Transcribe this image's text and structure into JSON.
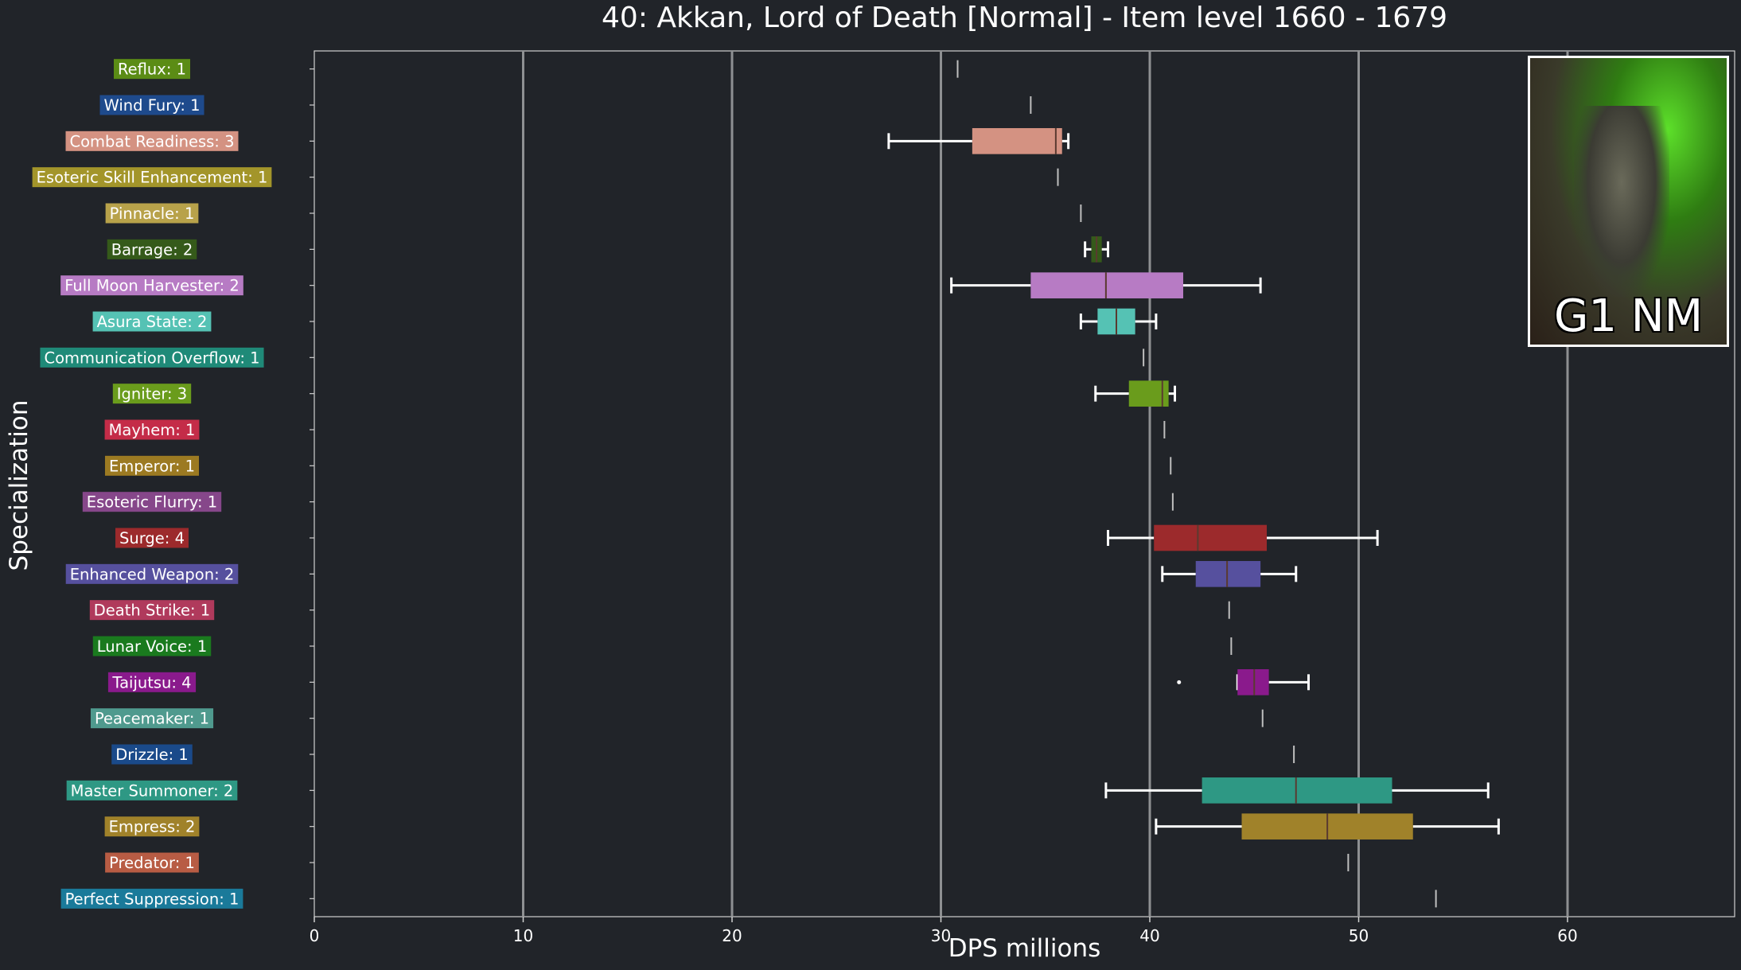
{
  "chart_data": {
    "type": "box",
    "orientation": "horizontal",
    "title": "40: Akkan, Lord of Death [Normal] - Item level 1660 - 1679",
    "xlabel": "DPS millions",
    "ylabel": "Specialization",
    "xlim": [
      0,
      68
    ],
    "xticks": [
      0,
      10,
      20,
      30,
      40,
      50,
      60
    ],
    "grid": "vertical",
    "inset_label": "G1 NM",
    "series": [
      {
        "label": "Reflux: 1",
        "color": "#5b8c15",
        "min": 30.8,
        "q1": 30.8,
        "median": 30.8,
        "q3": 30.8,
        "max": 30.8
      },
      {
        "label": "Wind Fury: 1",
        "color": "#1e4a8c",
        "min": 34.3,
        "q1": 34.3,
        "median": 34.3,
        "q3": 34.3,
        "max": 34.3
      },
      {
        "label": "Combat Readiness: 3",
        "color": "#d49282",
        "min": 27.5,
        "q1": 31.5,
        "median": 35.5,
        "q3": 35.8,
        "max": 36.1
      },
      {
        "label": "Esoteric Skill Enhancement: 1",
        "color": "#a3952a",
        "min": 35.6,
        "q1": 35.6,
        "median": 35.6,
        "q3": 35.6,
        "max": 35.6
      },
      {
        "label": "Pinnacle: 1",
        "color": "#b8a24a",
        "min": 36.7,
        "q1": 36.7,
        "median": 36.7,
        "q3": 36.7,
        "max": 36.7
      },
      {
        "label": "Barrage: 2",
        "color": "#355a1a",
        "min": 36.9,
        "q1": 37.2,
        "median": 37.45,
        "q3": 37.7,
        "max": 38.0
      },
      {
        "label": "Full Moon Harvester: 2",
        "color": "#b77bc4",
        "min": 30.5,
        "q1": 34.3,
        "median": 37.9,
        "q3": 41.6,
        "max": 45.3
      },
      {
        "label": "Asura State: 2",
        "color": "#55c2b4",
        "min": 36.7,
        "q1": 37.5,
        "median": 38.4,
        "q3": 39.3,
        "max": 40.3
      },
      {
        "label": "Communication Overflow: 1",
        "color": "#1f8a78",
        "min": 39.7,
        "q1": 39.7,
        "median": 39.7,
        "q3": 39.7,
        "max": 39.7
      },
      {
        "label": "Igniter: 3",
        "color": "#6a9c1c",
        "min": 37.4,
        "q1": 39.0,
        "median": 40.6,
        "q3": 40.9,
        "max": 41.2
      },
      {
        "label": "Mayhem: 1",
        "color": "#c42c48",
        "min": 40.7,
        "q1": 40.7,
        "median": 40.7,
        "q3": 40.7,
        "max": 40.7
      },
      {
        "label": "Emperor: 1",
        "color": "#9c7a22",
        "min": 41.0,
        "q1": 41.0,
        "median": 41.0,
        "q3": 41.0,
        "max": 41.0
      },
      {
        "label": "Esoteric Flurry: 1",
        "color": "#86478a",
        "min": 41.1,
        "q1": 41.1,
        "median": 41.1,
        "q3": 41.1,
        "max": 41.1
      },
      {
        "label": "Surge: 4",
        "color": "#9c2a2c",
        "min": 38.0,
        "q1": 40.2,
        "median": 42.3,
        "q3": 45.6,
        "max": 50.9
      },
      {
        "label": "Enhanced Weapon: 2",
        "color": "#56509e",
        "min": 40.6,
        "q1": 42.2,
        "median": 43.7,
        "q3": 45.3,
        "max": 47.0
      },
      {
        "label": "Death Strike: 1",
        "color": "#b03a5c",
        "min": 43.8,
        "q1": 43.8,
        "median": 43.8,
        "q3": 43.8,
        "max": 43.8
      },
      {
        "label": "Lunar Voice: 1",
        "color": "#1a7a1e",
        "min": 43.9,
        "q1": 43.9,
        "median": 43.9,
        "q3": 43.9,
        "max": 43.9
      },
      {
        "label": "Taijutsu: 4",
        "color": "#8a1a8c",
        "min": 44.2,
        "q1": 44.2,
        "median": 45.0,
        "q3": 45.7,
        "max": 47.6,
        "outliers": [
          41.4
        ]
      },
      {
        "label": "Peacemaker: 1",
        "color": "#4f9a8e",
        "min": 45.4,
        "q1": 45.4,
        "median": 45.4,
        "q3": 45.4,
        "max": 45.4
      },
      {
        "label": "Drizzle: 1",
        "color": "#1a4a8a",
        "min": 46.9,
        "q1": 46.9,
        "median": 46.9,
        "q3": 46.9,
        "max": 46.9
      },
      {
        "label": "Master Summoner: 2",
        "color": "#2e9884",
        "min": 37.9,
        "q1": 42.5,
        "median": 47.0,
        "q3": 51.6,
        "max": 56.2
      },
      {
        "label": "Empress: 2",
        "color": "#a0822a",
        "min": 40.3,
        "q1": 44.4,
        "median": 48.5,
        "q3": 52.6,
        "max": 56.7
      },
      {
        "label": "Predator: 1",
        "color": "#b85c44",
        "min": 49.5,
        "q1": 49.5,
        "median": 49.5,
        "q3": 49.5,
        "max": 49.5
      },
      {
        "label": "Perfect Suppression: 1",
        "color": "#1a7a9a",
        "min": 53.7,
        "q1": 53.7,
        "median": 53.7,
        "q3": 53.7,
        "max": 53.7
      }
    ]
  }
}
